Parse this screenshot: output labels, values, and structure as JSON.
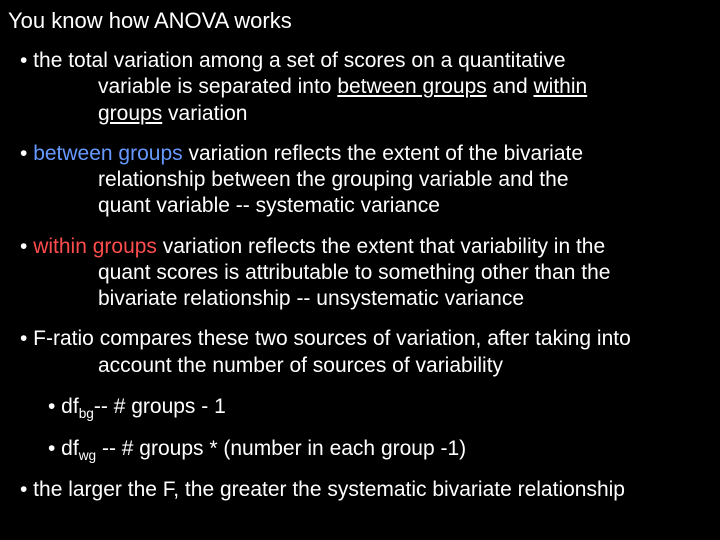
{
  "colors": {
    "background": "#000000",
    "text": "#ffffff",
    "blue": "#6699ff",
    "red": "#ff4d4d"
  },
  "typography": {
    "title_fontsize": 22,
    "body_fontsize": 21,
    "font_family": "Arial"
  },
  "title": "You know how ANOVA works",
  "b1": {
    "pre": "• the total variation among a set of scores on a quantitative ",
    "cont1a": "variable is separated into ",
    "cont1_between": "between groups",
    "cont1b": " and ",
    "cont1_within": "within ",
    "cont2_groups": "groups",
    "cont2b": " variation"
  },
  "b2": {
    "pre": "• ",
    "between": "between groups",
    "post": " variation reflects the extent of the bivariate ",
    "cont1": "relationship between the grouping variable and the ",
    "cont2": "quant  variable -- systematic variance"
  },
  "b3": {
    "pre": "• ",
    "within": "within groups",
    "post": " variation reflects the extent that variability in the ",
    "cont1": "quant scores is attributable to something other than the ",
    "cont2": "bivariate relationship -- unsystematic variance"
  },
  "b4": {
    "line": "• F-ratio compares these two sources of variation, after taking into ",
    "cont1": "account the number of sources of variability"
  },
  "sub1": {
    "pre": "• df",
    "sub": "bg",
    "post": "-- # groups - 1"
  },
  "sub2": {
    "pre": "• df",
    "sub": "wg",
    "post": " -- # groups * (number in each group -1)"
  },
  "b5": "• the larger the F, the greater the systematic bivariate relationship"
}
